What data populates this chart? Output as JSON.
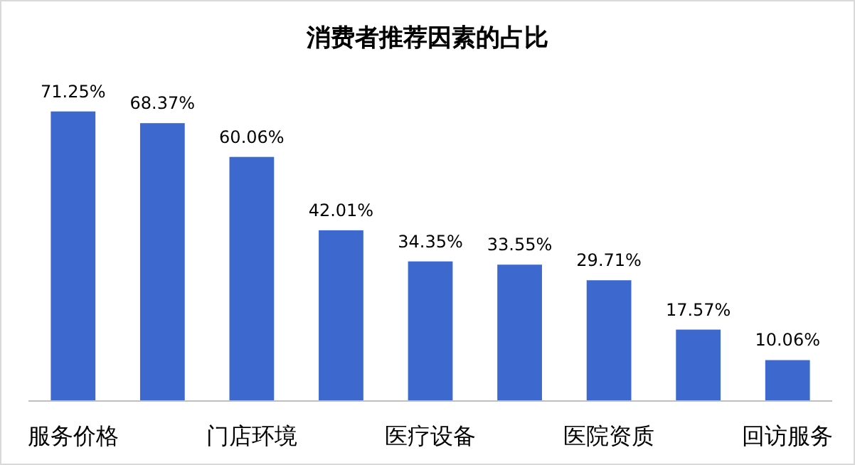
{
  "chart_data": {
    "type": "bar",
    "title": "消费者推荐因素的占比",
    "categories": [
      "服务价格",
      null,
      "门店环境",
      null,
      "医疗设备",
      null,
      "医院资质",
      null,
      "回访服务"
    ],
    "values": [
      71.25,
      68.37,
      60.06,
      42.01,
      34.35,
      33.55,
      29.71,
      17.57,
      10.06
    ],
    "value_labels": [
      "71.25%",
      "68.37%",
      "60.06%",
      "42.01%",
      "34.35%",
      "33.55%",
      "29.71%",
      "17.57%",
      "10.06%"
    ],
    "color": "#3d69cf"
  }
}
